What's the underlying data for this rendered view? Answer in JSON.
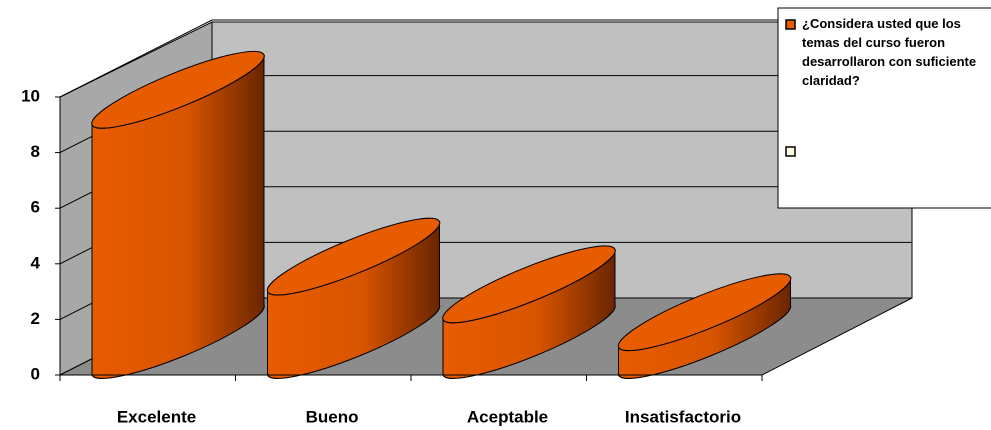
{
  "chart_data": {
    "type": "cylinder",
    "categories": [
      "Excelente",
      "Bueno",
      "Aceptable",
      "Insatisfactorio"
    ],
    "series": [
      {
        "name": "¿Considera usted que los temas del curso fueron desarrollaron con suficiente claridad?",
        "color": "#e85c00",
        "values": [
          9,
          3,
          2,
          1
        ]
      }
    ],
    "ylim": [
      0,
      10
    ],
    "yticks": [
      0,
      2,
      4,
      6,
      8,
      10
    ],
    "grid": true
  }
}
